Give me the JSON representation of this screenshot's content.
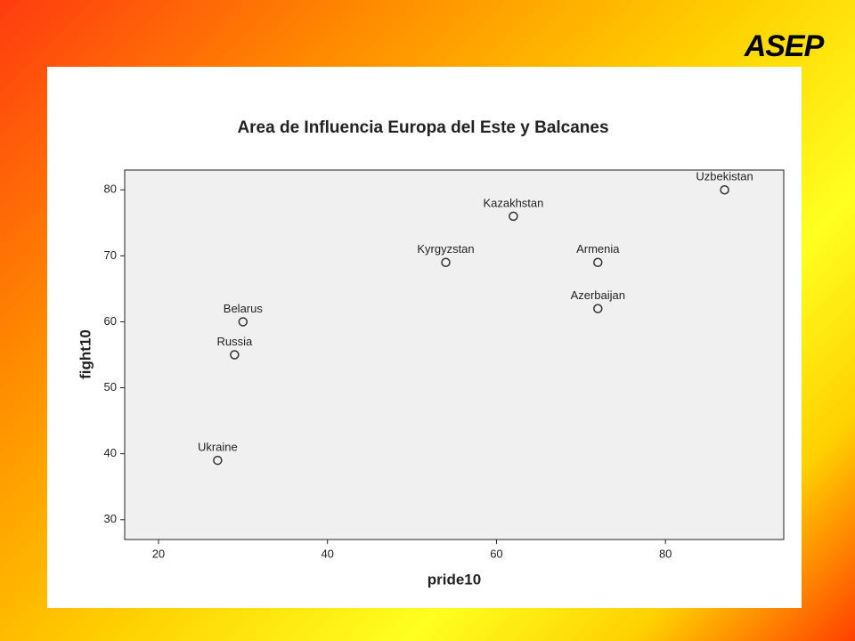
{
  "logo": "ASEP",
  "chart_data": {
    "type": "scatter",
    "title": "Area de Influencia Europa del Este y Balcanes",
    "x_label": "pride10",
    "y_label": "fight10",
    "labels": [
      "Uzbekistan",
      "Kazakhstan",
      "Kyrgyzstan",
      "Armenia",
      "Azerbaijan",
      "Belarus",
      "Russia",
      "Ukraine"
    ],
    "x": [
      87,
      62,
      54,
      72,
      72,
      30,
      29,
      27
    ],
    "values": [
      80,
      76,
      69,
      69,
      62,
      60,
      55,
      39
    ],
    "xlim": [
      16,
      94
    ],
    "ylim": [
      27,
      83
    ],
    "xticks": [
      20,
      40,
      60,
      80
    ],
    "yticks": [
      30,
      40,
      50,
      60,
      70,
      80
    ],
    "color": "#333333",
    "grid": false
  }
}
